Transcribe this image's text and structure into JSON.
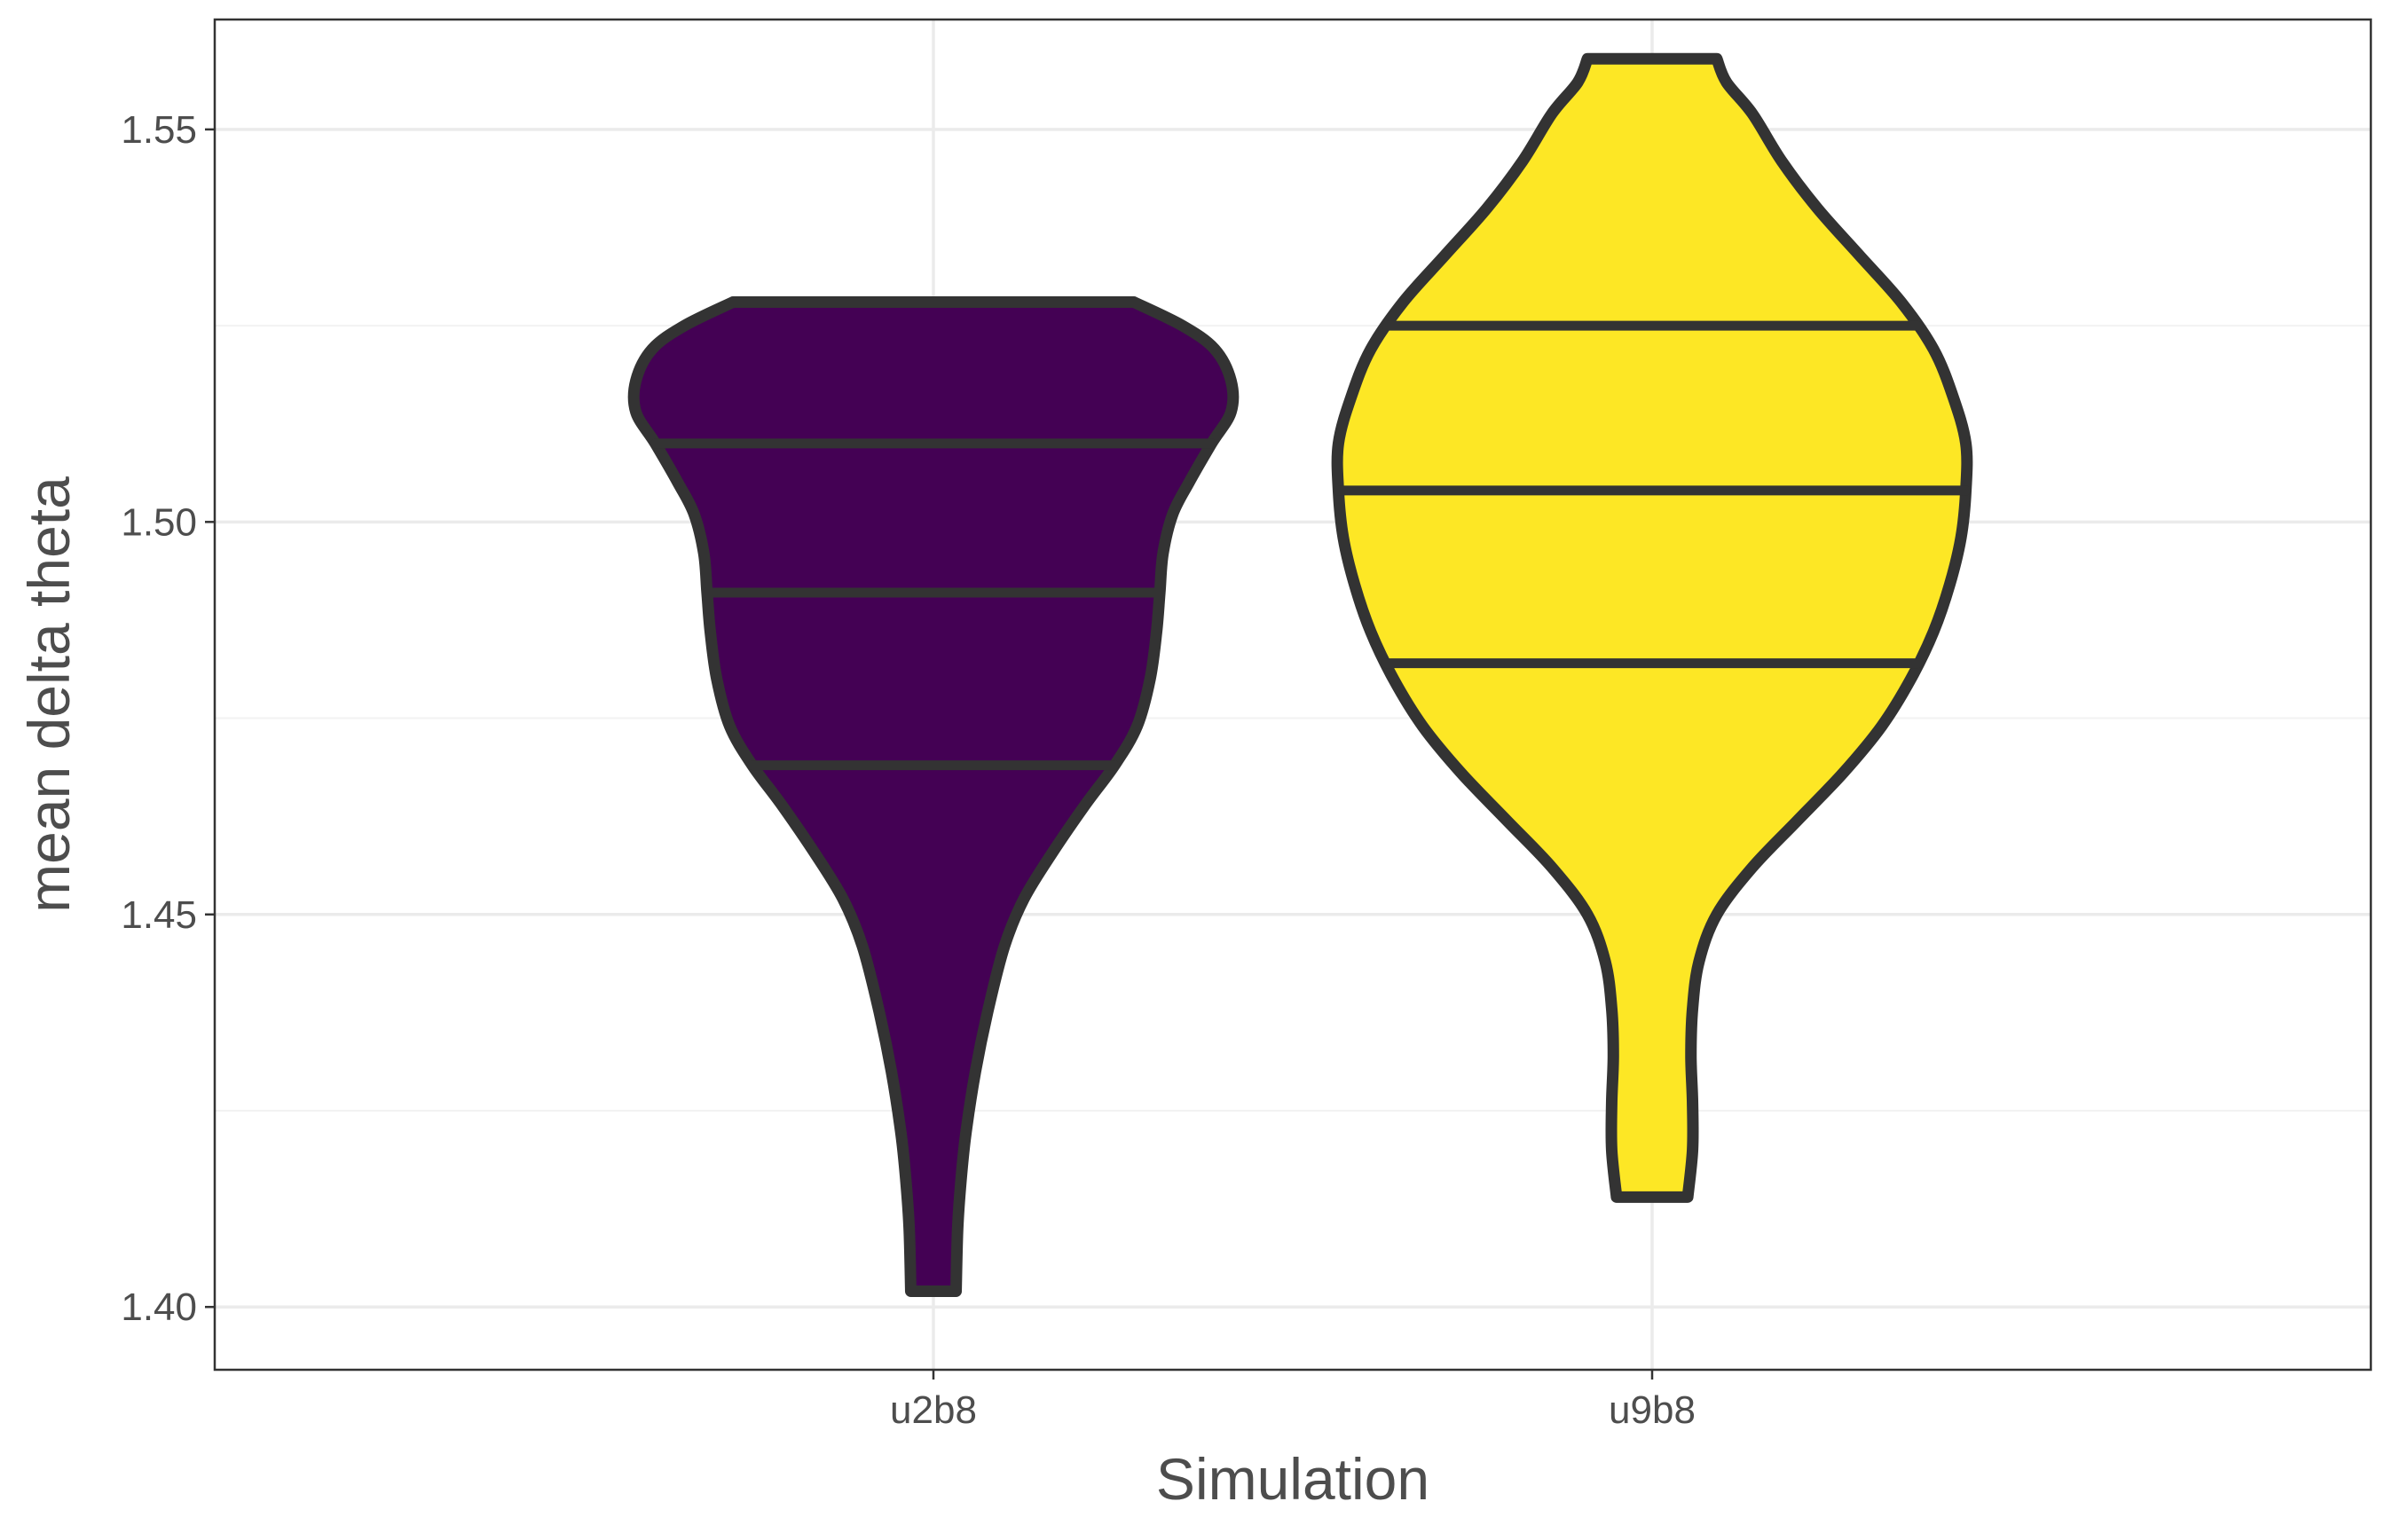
{
  "chart_data": {
    "type": "violin",
    "xlabel": "Simulation",
    "ylabel": "mean delta theta",
    "categories": [
      "u2b8",
      "u9b8"
    ],
    "ylim": [
      1.392,
      1.564
    ],
    "yticks": [
      1.4,
      1.45,
      1.5,
      1.55
    ],
    "ytick_labels": [
      "1.40",
      "1.45",
      "1.50",
      "1.55"
    ],
    "grid": true,
    "legend": "none",
    "series": [
      {
        "category": "u2b8",
        "fill": "#440154",
        "min": 1.402,
        "max": 1.528,
        "quantiles": [
          1.469,
          1.491,
          1.51
        ],
        "density": [
          [
            1.402,
            0.07
          ],
          [
            1.41,
            0.075
          ],
          [
            1.416,
            0.085
          ],
          [
            1.422,
            0.1
          ],
          [
            1.43,
            0.13
          ],
          [
            1.438,
            0.17
          ],
          [
            1.446,
            0.22
          ],
          [
            1.452,
            0.28
          ],
          [
            1.458,
            0.37
          ],
          [
            1.464,
            0.47
          ],
          [
            1.469,
            0.56
          ],
          [
            1.474,
            0.63
          ],
          [
            1.48,
            0.67
          ],
          [
            1.486,
            0.69
          ],
          [
            1.491,
            0.7
          ],
          [
            1.496,
            0.71
          ],
          [
            1.501,
            0.74
          ],
          [
            1.505,
            0.79
          ],
          [
            1.51,
            0.86
          ],
          [
            1.514,
            0.92
          ],
          [
            1.518,
            0.92
          ],
          [
            1.522,
            0.87
          ],
          [
            1.525,
            0.77
          ],
          [
            1.528,
            0.62
          ]
        ]
      },
      {
        "category": "u9b8",
        "fill": "#fde725",
        "min": 1.414,
        "max": 1.559,
        "quantiles": [
          1.482,
          1.504,
          1.525
        ],
        "density": [
          [
            1.414,
            0.11
          ],
          [
            1.42,
            0.125
          ],
          [
            1.426,
            0.125
          ],
          [
            1.432,
            0.12
          ],
          [
            1.438,
            0.125
          ],
          [
            1.444,
            0.145
          ],
          [
            1.45,
            0.2
          ],
          [
            1.456,
            0.31
          ],
          [
            1.462,
            0.45
          ],
          [
            1.468,
            0.59
          ],
          [
            1.474,
            0.71
          ],
          [
            1.48,
            0.8
          ],
          [
            1.486,
            0.87
          ],
          [
            1.492,
            0.92
          ],
          [
            1.498,
            0.955
          ],
          [
            1.504,
            0.97
          ],
          [
            1.51,
            0.97
          ],
          [
            1.516,
            0.93
          ],
          [
            1.522,
            0.87
          ],
          [
            1.528,
            0.77
          ],
          [
            1.534,
            0.64
          ],
          [
            1.54,
            0.51
          ],
          [
            1.546,
            0.4
          ],
          [
            1.552,
            0.31
          ],
          [
            1.556,
            0.23
          ],
          [
            1.559,
            0.2
          ]
        ]
      }
    ]
  }
}
